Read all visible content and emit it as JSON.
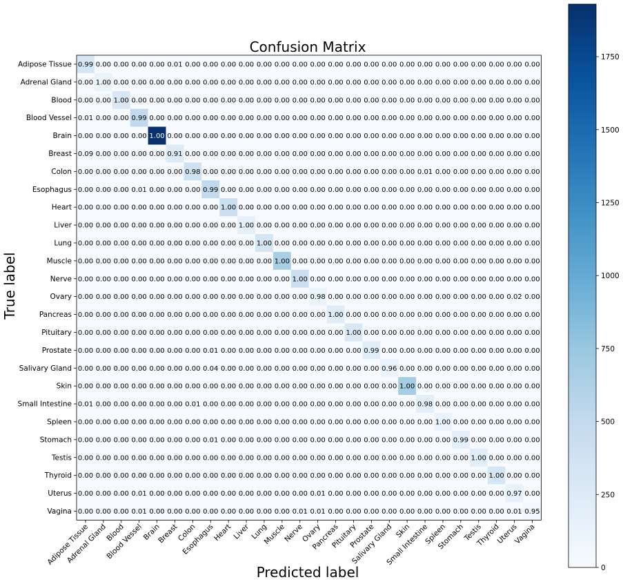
{
  "chart_data": {
    "type": "heatmap",
    "title": "Confusion Matrix",
    "xlabel": "Predicted label",
    "ylabel": "True label",
    "colormap": "Blues",
    "colorbar": {
      "min": 0,
      "max": 1930,
      "ticks": [
        0,
        250,
        500,
        750,
        1000,
        1250,
        1500,
        1750
      ]
    },
    "labels": [
      "Adipose Tissue",
      "Adrenal Gland",
      "Blood",
      "Blood Vessel",
      "Brain",
      "Breast",
      "Colon",
      "Esophagus",
      "Heart",
      "Liver",
      "Lung",
      "Muscle",
      "Nerve",
      "Ovary",
      "Pancreas",
      "Pituitary",
      "Prostate",
      "Salivary Gland",
      "Skin",
      "Small Intestine",
      "Spleen",
      "Stomach",
      "Testis",
      "Thyroid",
      "Uterus",
      "Vagina"
    ],
    "diagonal_counts": [
      320,
      110,
      280,
      500,
      1930,
      240,
      380,
      500,
      420,
      160,
      330,
      650,
      420,
      120,
      220,
      280,
      200,
      130,
      680,
      200,
      130,
      180,
      210,
      320,
      140,
      60
    ],
    "matrix": [
      [
        "0.99",
        "0.00",
        "0.00",
        "0.00",
        "0.00",
        "0.01",
        "0.00",
        "0.00",
        "0.00",
        "0.00",
        "0.00",
        "0.00",
        "0.00",
        "0.00",
        "0.00",
        "0.00",
        "0.00",
        "0.00",
        "0.00",
        "0.00",
        "0.00",
        "0.00",
        "0.00",
        "0.00",
        "0.00",
        "0.00"
      ],
      [
        "0.00",
        "1.00",
        "0.00",
        "0.00",
        "0.00",
        "0.00",
        "0.00",
        "0.00",
        "0.00",
        "0.00",
        "0.00",
        "0.00",
        "0.00",
        "0.00",
        "0.00",
        "0.00",
        "0.00",
        "0.00",
        "0.00",
        "0.00",
        "0.00",
        "0.00",
        "0.00",
        "0.00",
        "0.00",
        "0.00"
      ],
      [
        "0.00",
        "0.00",
        "1.00",
        "0.00",
        "0.00",
        "0.00",
        "0.00",
        "0.00",
        "0.00",
        "0.00",
        "0.00",
        "0.00",
        "0.00",
        "0.00",
        "0.00",
        "0.00",
        "0.00",
        "0.00",
        "0.00",
        "0.00",
        "0.00",
        "0.00",
        "0.00",
        "0.00",
        "0.00",
        "0.00"
      ],
      [
        "0.01",
        "0.00",
        "0.00",
        "0.99",
        "0.00",
        "0.00",
        "0.00",
        "0.00",
        "0.00",
        "0.00",
        "0.00",
        "0.00",
        "0.00",
        "0.00",
        "0.00",
        "0.00",
        "0.00",
        "0.00",
        "0.00",
        "0.00",
        "0.00",
        "0.00",
        "0.00",
        "0.00",
        "0.00",
        "0.00"
      ],
      [
        "0.00",
        "0.00",
        "0.00",
        "0.00",
        "1.00",
        "0.00",
        "0.00",
        "0.00",
        "0.00",
        "0.00",
        "0.00",
        "0.00",
        "0.00",
        "0.00",
        "0.00",
        "0.00",
        "0.00",
        "0.00",
        "0.00",
        "0.00",
        "0.00",
        "0.00",
        "0.00",
        "0.00",
        "0.00",
        "0.00"
      ],
      [
        "0.09",
        "0.00",
        "0.00",
        "0.00",
        "0.00",
        "0.91",
        "0.00",
        "0.00",
        "0.00",
        "0.00",
        "0.00",
        "0.00",
        "0.00",
        "0.00",
        "0.00",
        "0.00",
        "0.00",
        "0.00",
        "0.00",
        "0.00",
        "0.00",
        "0.00",
        "0.00",
        "0.00",
        "0.00",
        "0.00"
      ],
      [
        "0.00",
        "0.00",
        "0.00",
        "0.00",
        "0.00",
        "0.00",
        "0.98",
        "0.00",
        "0.00",
        "0.00",
        "0.00",
        "0.00",
        "0.00",
        "0.00",
        "0.00",
        "0.00",
        "0.00",
        "0.00",
        "0.00",
        "0.01",
        "0.00",
        "0.00",
        "0.00",
        "0.00",
        "0.00",
        "0.00"
      ],
      [
        "0.00",
        "0.00",
        "0.00",
        "0.01",
        "0.00",
        "0.00",
        "0.00",
        "0.99",
        "0.00",
        "0.00",
        "0.00",
        "0.00",
        "0.00",
        "0.00",
        "0.00",
        "0.00",
        "0.00",
        "0.00",
        "0.00",
        "0.00",
        "0.00",
        "0.00",
        "0.00",
        "0.00",
        "0.00",
        "0.00"
      ],
      [
        "0.00",
        "0.00",
        "0.00",
        "0.00",
        "0.00",
        "0.00",
        "0.00",
        "0.00",
        "1.00",
        "0.00",
        "0.00",
        "0.00",
        "0.00",
        "0.00",
        "0.00",
        "0.00",
        "0.00",
        "0.00",
        "0.00",
        "0.00",
        "0.00",
        "0.00",
        "0.00",
        "0.00",
        "0.00",
        "0.00"
      ],
      [
        "0.00",
        "0.00",
        "0.00",
        "0.00",
        "0.00",
        "0.00",
        "0.00",
        "0.00",
        "0.00",
        "1.00",
        "0.00",
        "0.00",
        "0.00",
        "0.00",
        "0.00",
        "0.00",
        "0.00",
        "0.00",
        "0.00",
        "0.00",
        "0.00",
        "0.00",
        "0.00",
        "0.00",
        "0.00",
        "0.00"
      ],
      [
        "0.00",
        "0.00",
        "0.00",
        "0.00",
        "0.00",
        "0.00",
        "0.00",
        "0.00",
        "0.00",
        "0.00",
        "1.00",
        "0.00",
        "0.00",
        "0.00",
        "0.00",
        "0.00",
        "0.00",
        "0.00",
        "0.00",
        "0.00",
        "0.00",
        "0.00",
        "0.00",
        "0.00",
        "0.00",
        "0.00"
      ],
      [
        "0.00",
        "0.00",
        "0.00",
        "0.00",
        "0.00",
        "0.00",
        "0.00",
        "0.00",
        "0.00",
        "0.00",
        "0.00",
        "1.00",
        "0.00",
        "0.00",
        "0.00",
        "0.00",
        "0.00",
        "0.00",
        "0.00",
        "0.00",
        "0.00",
        "0.00",
        "0.00",
        "0.00",
        "0.00",
        "0.00"
      ],
      [
        "0.00",
        "0.00",
        "0.00",
        "0.00",
        "0.00",
        "0.00",
        "0.00",
        "0.00",
        "0.00",
        "0.00",
        "0.00",
        "0.00",
        "1.00",
        "0.00",
        "0.00",
        "0.00",
        "0.00",
        "0.00",
        "0.00",
        "0.00",
        "0.00",
        "0.00",
        "0.00",
        "0.00",
        "0.00",
        "0.00"
      ],
      [
        "0.00",
        "0.00",
        "0.00",
        "0.00",
        "0.00",
        "0.00",
        "0.00",
        "0.00",
        "0.00",
        "0.00",
        "0.00",
        "0.00",
        "0.00",
        "0.98",
        "0.00",
        "0.00",
        "0.00",
        "0.00",
        "0.00",
        "0.00",
        "0.00",
        "0.00",
        "0.00",
        "0.00",
        "0.02",
        "0.00"
      ],
      [
        "0.00",
        "0.00",
        "0.00",
        "0.00",
        "0.00",
        "0.00",
        "0.00",
        "0.00",
        "0.00",
        "0.00",
        "0.00",
        "0.00",
        "0.00",
        "0.00",
        "1.00",
        "0.00",
        "0.00",
        "0.00",
        "0.00",
        "0.00",
        "0.00",
        "0.00",
        "0.00",
        "0.00",
        "0.00",
        "0.00"
      ],
      [
        "0.00",
        "0.00",
        "0.00",
        "0.00",
        "0.00",
        "0.00",
        "0.00",
        "0.00",
        "0.00",
        "0.00",
        "0.00",
        "0.00",
        "0.00",
        "0.00",
        "0.00",
        "1.00",
        "0.00",
        "0.00",
        "0.00",
        "0.00",
        "0.00",
        "0.00",
        "0.00",
        "0.00",
        "0.00",
        "0.00"
      ],
      [
        "0.00",
        "0.00",
        "0.00",
        "0.00",
        "0.00",
        "0.00",
        "0.00",
        "0.01",
        "0.00",
        "0.00",
        "0.00",
        "0.00",
        "0.00",
        "0.00",
        "0.00",
        "0.00",
        "0.99",
        "0.00",
        "0.00",
        "0.00",
        "0.00",
        "0.00",
        "0.00",
        "0.00",
        "0.00",
        "0.00"
      ],
      [
        "0.00",
        "0.00",
        "0.00",
        "0.00",
        "0.00",
        "0.00",
        "0.00",
        "0.04",
        "0.00",
        "0.00",
        "0.00",
        "0.00",
        "0.00",
        "0.00",
        "0.00",
        "0.00",
        "0.00",
        "0.96",
        "0.00",
        "0.00",
        "0.00",
        "0.00",
        "0.00",
        "0.00",
        "0.00",
        "0.00"
      ],
      [
        "0.00",
        "0.00",
        "0.00",
        "0.00",
        "0.00",
        "0.00",
        "0.00",
        "0.00",
        "0.00",
        "0.00",
        "0.00",
        "0.00",
        "0.00",
        "0.00",
        "0.00",
        "0.00",
        "0.00",
        "0.00",
        "1.00",
        "0.00",
        "0.00",
        "0.00",
        "0.00",
        "0.00",
        "0.00",
        "0.00"
      ],
      [
        "0.01",
        "0.00",
        "0.00",
        "0.00",
        "0.00",
        "0.00",
        "0.01",
        "0.00",
        "0.00",
        "0.00",
        "0.00",
        "0.00",
        "0.00",
        "0.00",
        "0.00",
        "0.00",
        "0.00",
        "0.00",
        "0.00",
        "0.98",
        "0.00",
        "0.00",
        "0.00",
        "0.00",
        "0.00",
        "0.00"
      ],
      [
        "0.00",
        "0.00",
        "0.00",
        "0.00",
        "0.00",
        "0.00",
        "0.00",
        "0.00",
        "0.00",
        "0.00",
        "0.00",
        "0.00",
        "0.00",
        "0.00",
        "0.00",
        "0.00",
        "0.00",
        "0.00",
        "0.00",
        "0.00",
        "1.00",
        "0.00",
        "0.00",
        "0.00",
        "0.00",
        "0.00"
      ],
      [
        "0.00",
        "0.00",
        "0.00",
        "0.00",
        "0.00",
        "0.00",
        "0.00",
        "0.01",
        "0.00",
        "0.00",
        "0.00",
        "0.00",
        "0.00",
        "0.00",
        "0.00",
        "0.00",
        "0.00",
        "0.00",
        "0.00",
        "0.00",
        "0.00",
        "0.99",
        "0.00",
        "0.00",
        "0.00",
        "0.00"
      ],
      [
        "0.00",
        "0.00",
        "0.00",
        "0.00",
        "0.00",
        "0.00",
        "0.00",
        "0.00",
        "0.00",
        "0.00",
        "0.00",
        "0.00",
        "0.00",
        "0.00",
        "0.00",
        "0.00",
        "0.00",
        "0.00",
        "0.00",
        "0.00",
        "0.00",
        "0.00",
        "1.00",
        "0.00",
        "0.00",
        "0.00"
      ],
      [
        "0.00",
        "0.00",
        "0.00",
        "0.00",
        "0.00",
        "0.00",
        "0.00",
        "0.00",
        "0.00",
        "0.00",
        "0.00",
        "0.00",
        "0.00",
        "0.00",
        "0.00",
        "0.00",
        "0.00",
        "0.00",
        "0.00",
        "0.00",
        "0.00",
        "0.00",
        "0.00",
        "1.00",
        "0.00",
        "0.00"
      ],
      [
        "0.00",
        "0.00",
        "0.00",
        "0.01",
        "0.00",
        "0.00",
        "0.00",
        "0.00",
        "0.00",
        "0.00",
        "0.00",
        "0.00",
        "0.00",
        "0.01",
        "0.00",
        "0.00",
        "0.00",
        "0.00",
        "0.00",
        "0.00",
        "0.00",
        "0.00",
        "0.00",
        "0.00",
        "0.97",
        "0.00"
      ],
      [
        "0.00",
        "0.00",
        "0.00",
        "0.01",
        "0.00",
        "0.00",
        "0.00",
        "0.00",
        "0.00",
        "0.00",
        "0.00",
        "0.00",
        "0.01",
        "0.01",
        "0.00",
        "0.00",
        "0.00",
        "0.00",
        "0.00",
        "0.00",
        "0.00",
        "0.00",
        "0.00",
        "0.00",
        "0.01",
        "0.95"
      ]
    ]
  }
}
